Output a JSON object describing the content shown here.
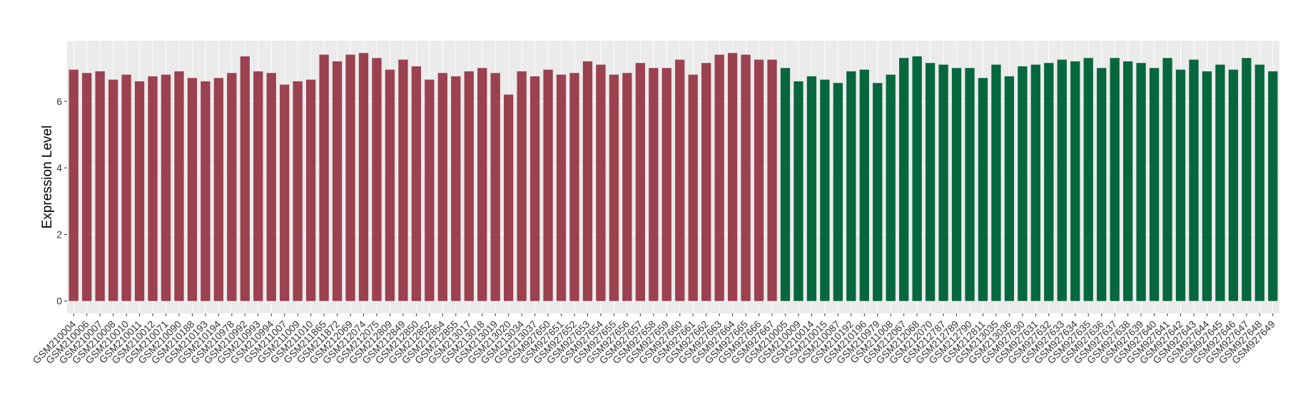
{
  "chart_data": {
    "type": "bar",
    "y_label": "Expression Level",
    "categories": [
      "GSM210004",
      "GSM210006",
      "GSM210007",
      "GSM210008",
      "GSM210010",
      "GSM210011",
      "GSM210012",
      "GSM210071",
      "GSM210090",
      "GSM210188",
      "GSM210193",
      "GSM210194",
      "GSM210978",
      "GSM210992",
      "GSM210993",
      "GSM210994",
      "GSM211007",
      "GSM211009",
      "GSM211010",
      "GSM211865",
      "GSM211872",
      "GSM212069",
      "GSM212074",
      "GSM212075",
      "GSM212809",
      "GSM212849",
      "GSM212850",
      "GSM212852",
      "GSM212854",
      "GSM212855",
      "GSM213017",
      "GSM213018",
      "GSM213019",
      "GSM213020",
      "GSM213034",
      "GSM213037",
      "GSM927650",
      "GSM927651",
      "GSM927652",
      "GSM927653",
      "GSM927654",
      "GSM927655",
      "GSM927656",
      "GSM927657",
      "GSM927658",
      "GSM927659",
      "GSM927660",
      "GSM927661",
      "GSM927662",
      "GSM927663",
      "GSM927664",
      "GSM927665",
      "GSM927666",
      "GSM927667",
      "GSM210005",
      "GSM210009",
      "GSM210014",
      "GSM210015",
      "GSM210087",
      "GSM210192",
      "GSM210196",
      "GSM210979",
      "GSM211008",
      "GSM212067",
      "GSM212068",
      "GSM212070",
      "GSM212787",
      "GSM212789",
      "GSM212790",
      "GSM212811",
      "GSM213035",
      "GSM213036",
      "GSM927630",
      "GSM927631",
      "GSM927632",
      "GSM927633",
      "GSM927634",
      "GSM927635",
      "GSM927636",
      "GSM927637",
      "GSM927638",
      "GSM927639",
      "GSM927640",
      "GSM927641",
      "GSM927642",
      "GSM927643",
      "GSM927644",
      "GSM927645",
      "GSM927646",
      "GSM927647",
      "GSM927648",
      "GSM927649"
    ],
    "values": [
      6.95,
      6.85,
      6.9,
      6.65,
      6.8,
      6.6,
      6.75,
      6.8,
      6.9,
      6.7,
      6.6,
      6.7,
      6.85,
      7.35,
      6.9,
      6.85,
      6.5,
      6.6,
      6.65,
      7.4,
      7.2,
      7.4,
      7.45,
      7.3,
      6.95,
      7.25,
      7.05,
      6.65,
      6.85,
      6.75,
      6.9,
      7.0,
      6.85,
      6.2,
      6.9,
      6.75,
      6.95,
      6.8,
      6.85,
      7.2,
      7.1,
      6.8,
      6.85,
      7.15,
      7.0,
      7.0,
      7.25,
      6.8,
      7.15,
      7.4,
      7.45,
      7.4,
      7.25,
      7.25,
      7.0,
      6.6,
      6.75,
      6.65,
      6.55,
      6.9,
      6.95,
      6.55,
      6.8,
      7.3,
      7.35,
      7.15,
      7.1,
      7.0,
      7.0,
      6.7,
      7.1,
      6.75,
      7.05,
      7.1,
      7.15,
      7.25,
      7.2,
      7.3,
      7.0,
      7.3,
      7.2,
      7.15,
      7.0,
      7.3,
      6.95,
      7.25,
      6.9,
      7.1,
      6.95,
      7.3,
      7.1,
      6.9
    ],
    "colors": [
      "#9b4150",
      "#9b4150",
      "#9b4150",
      "#9b4150",
      "#9b4150",
      "#9b4150",
      "#9b4150",
      "#9b4150",
      "#9b4150",
      "#9b4150",
      "#9b4150",
      "#9b4150",
      "#9b4150",
      "#9b4150",
      "#9b4150",
      "#9b4150",
      "#9b4150",
      "#9b4150",
      "#9b4150",
      "#9b4150",
      "#9b4150",
      "#9b4150",
      "#9b4150",
      "#9b4150",
      "#9b4150",
      "#9b4150",
      "#9b4150",
      "#9b4150",
      "#9b4150",
      "#9b4150",
      "#9b4150",
      "#9b4150",
      "#9b4150",
      "#9b4150",
      "#9b4150",
      "#9b4150",
      "#9b4150",
      "#9b4150",
      "#9b4150",
      "#9b4150",
      "#9b4150",
      "#9b4150",
      "#9b4150",
      "#9b4150",
      "#9b4150",
      "#9b4150",
      "#9b4150",
      "#9b4150",
      "#9b4150",
      "#9b4150",
      "#9b4150",
      "#9b4150",
      "#9b4150",
      "#9b4150",
      "#06673f",
      "#06673f",
      "#06673f",
      "#06673f",
      "#06673f",
      "#06673f",
      "#06673f",
      "#06673f",
      "#06673f",
      "#06673f",
      "#06673f",
      "#06673f",
      "#06673f",
      "#06673f",
      "#06673f",
      "#06673f",
      "#06673f",
      "#06673f",
      "#06673f",
      "#06673f",
      "#06673f",
      "#06673f",
      "#06673f",
      "#06673f",
      "#06673f",
      "#06673f",
      "#06673f",
      "#06673f",
      "#06673f",
      "#06673f",
      "#06673f",
      "#06673f",
      "#06673f",
      "#06673f",
      "#06673f",
      "#06673f",
      "#06673f",
      "#06673f"
    ],
    "ylim": [
      -0.37,
      7.82
    ],
    "yticks": [
      0,
      2,
      4,
      6
    ],
    "grid": true
  }
}
